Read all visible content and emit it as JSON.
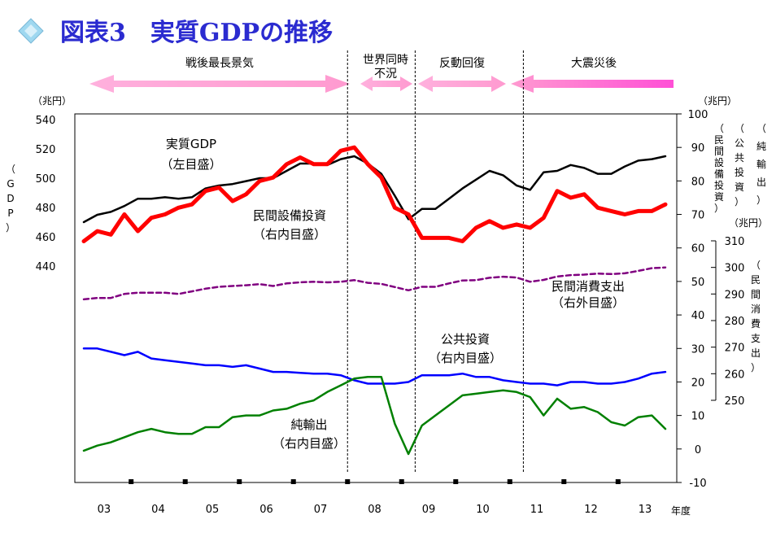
{
  "header": {
    "title": "図表3　実質GDPの推移",
    "title_color": "#2b2bd0",
    "diamond_color": "#9fd8f0"
  },
  "periods": [
    {
      "label": "戦後最長景気",
      "start": 0,
      "end": 19.5
    },
    {
      "label_line1": "世界同時",
      "label_line2": "不況",
      "start": 19.5,
      "end": 24.5
    },
    {
      "label": "反動回復",
      "start": 24.5,
      "end": 32.5
    },
    {
      "label": "大震災後",
      "start": 32.5,
      "end": 43
    }
  ],
  "axes": {
    "left": {
      "unit": "（兆円）",
      "ticks": [
        440,
        460,
        480,
        500,
        520,
        540
      ],
      "label_chars": [
        "（",
        "G",
        "D",
        "P",
        "）"
      ]
    },
    "right_inner": {
      "unit": "（兆円）",
      "ticks": [
        -10,
        0,
        10,
        20,
        30,
        40,
        50,
        60,
        70,
        80,
        90,
        100
      ],
      "label_col1": [
        "（",
        "民",
        "間",
        "設",
        "備",
        "投",
        "資",
        "）"
      ],
      "label_col2": [
        "（",
        "公",
        "共",
        "投",
        "資",
        "）"
      ],
      "label_col3": [
        "（",
        "純",
        "輸",
        "出",
        "）"
      ]
    },
    "right_outer": {
      "unit": "（兆円）",
      "ticks": [
        250,
        260,
        270,
        280,
        290,
        300,
        310
      ],
      "label_chars": [
        "（",
        "民",
        "間",
        "消",
        "費",
        "支",
        "出",
        "）"
      ]
    },
    "x": {
      "unit_label": "年度",
      "years": [
        "03",
        "04",
        "05",
        "06",
        "07",
        "08",
        "09",
        "10",
        "11",
        "12",
        "13"
      ]
    }
  },
  "annotations": {
    "gdp": {
      "line1": "実質GDP",
      "line2": "（左目盛）"
    },
    "capex": {
      "line1": "民間設備投資",
      "line2": "（右内目盛）"
    },
    "consumption": {
      "line1": "民間消費支出",
      "line2": "（右外目盛）"
    },
    "public": {
      "line1": "公共投資",
      "line2": "（右内目盛）"
    },
    "netexports": {
      "line1": "純輸出",
      "line2": "（右内目盛）"
    }
  },
  "chart_data": {
    "type": "line",
    "x_unit": "quarter index (0 = 2003 first quarter of fiscal year, 4 quarters per fiscal year)",
    "x_range": [
      0,
      43
    ],
    "dividers": [
      19.5,
      24.5,
      32.5
    ],
    "series": [
      {
        "name": "実質GDP",
        "axis": "left",
        "color": "#000000",
        "style": "solid",
        "width": 2.5,
        "values": [
          470,
          475,
          477,
          481,
          486,
          486,
          487,
          486,
          487,
          493,
          495,
          496,
          498,
          500,
          500,
          505,
          510,
          510,
          509,
          513,
          515,
          510,
          503,
          488,
          472,
          479,
          479,
          486,
          493,
          499,
          505,
          502,
          495,
          492,
          504,
          505,
          509,
          507,
          503,
          503,
          508,
          512,
          513,
          515
        ]
      },
      {
        "name": "民間設備投資",
        "axis": "right_inner",
        "color": "#ff0000",
        "style": "solid",
        "width": 5,
        "values": [
          62,
          65,
          64,
          70,
          65,
          69,
          70,
          72,
          73,
          77,
          78,
          74,
          76,
          80,
          81,
          85,
          87,
          85,
          85,
          89,
          90,
          85,
          81,
          72,
          70,
          63,
          63,
          63,
          62,
          66,
          68,
          66,
          67,
          66,
          69,
          77,
          75,
          76,
          72,
          71,
          70,
          71,
          71,
          73
        ]
      },
      {
        "name": "民間消費支出",
        "axis": "right_outer",
        "color": "#800080",
        "style": "dashed",
        "width": 2.5,
        "values": [
          288,
          288.5,
          288.5,
          290,
          290.5,
          290.5,
          290.5,
          290,
          291,
          292,
          292.7,
          293,
          293.3,
          293.7,
          293,
          294,
          294.4,
          294.6,
          294.4,
          294.6,
          295.2,
          294.2,
          293.8,
          292.6,
          291.4,
          292.7,
          292.7,
          294,
          295.1,
          295.2,
          296.1,
          296.5,
          296.2,
          294.6,
          295.3,
          296.6,
          297.1,
          297.3,
          297.7,
          297.5,
          297.8,
          298.7,
          299.7,
          300
        ]
      },
      {
        "name": "公共投資",
        "axis": "right_inner",
        "color": "#0000ff",
        "style": "solid",
        "width": 2.5,
        "values": [
          30,
          30,
          29,
          28,
          29,
          27,
          26.5,
          26,
          25.5,
          25,
          25,
          24.5,
          25,
          24,
          23,
          23,
          22.7,
          22.5,
          22.5,
          22,
          20.5,
          19.5,
          19.5,
          19.5,
          20,
          22,
          22,
          22,
          22.5,
          21.5,
          21.5,
          20.5,
          20,
          19.5,
          19.5,
          19,
          20,
          20,
          19.5,
          19.5,
          20,
          21,
          22.5,
          23
        ]
      },
      {
        "name": "純輸出",
        "axis": "right_inner",
        "color": "#008000",
        "style": "solid",
        "width": 2.5,
        "values": [
          -0.5,
          1,
          2,
          3.5,
          5,
          6,
          5,
          4.5,
          4.5,
          6.5,
          6.5,
          9.5,
          10,
          10,
          11.5,
          12,
          13.5,
          14.5,
          17,
          19,
          21,
          21.5,
          21.5,
          7.5,
          -1.5,
          7,
          10,
          13,
          16,
          16.5,
          17,
          17.5,
          17,
          15.5,
          10,
          15,
          12,
          12.5,
          11,
          8,
          7,
          9.5,
          10,
          6
        ]
      }
    ]
  }
}
